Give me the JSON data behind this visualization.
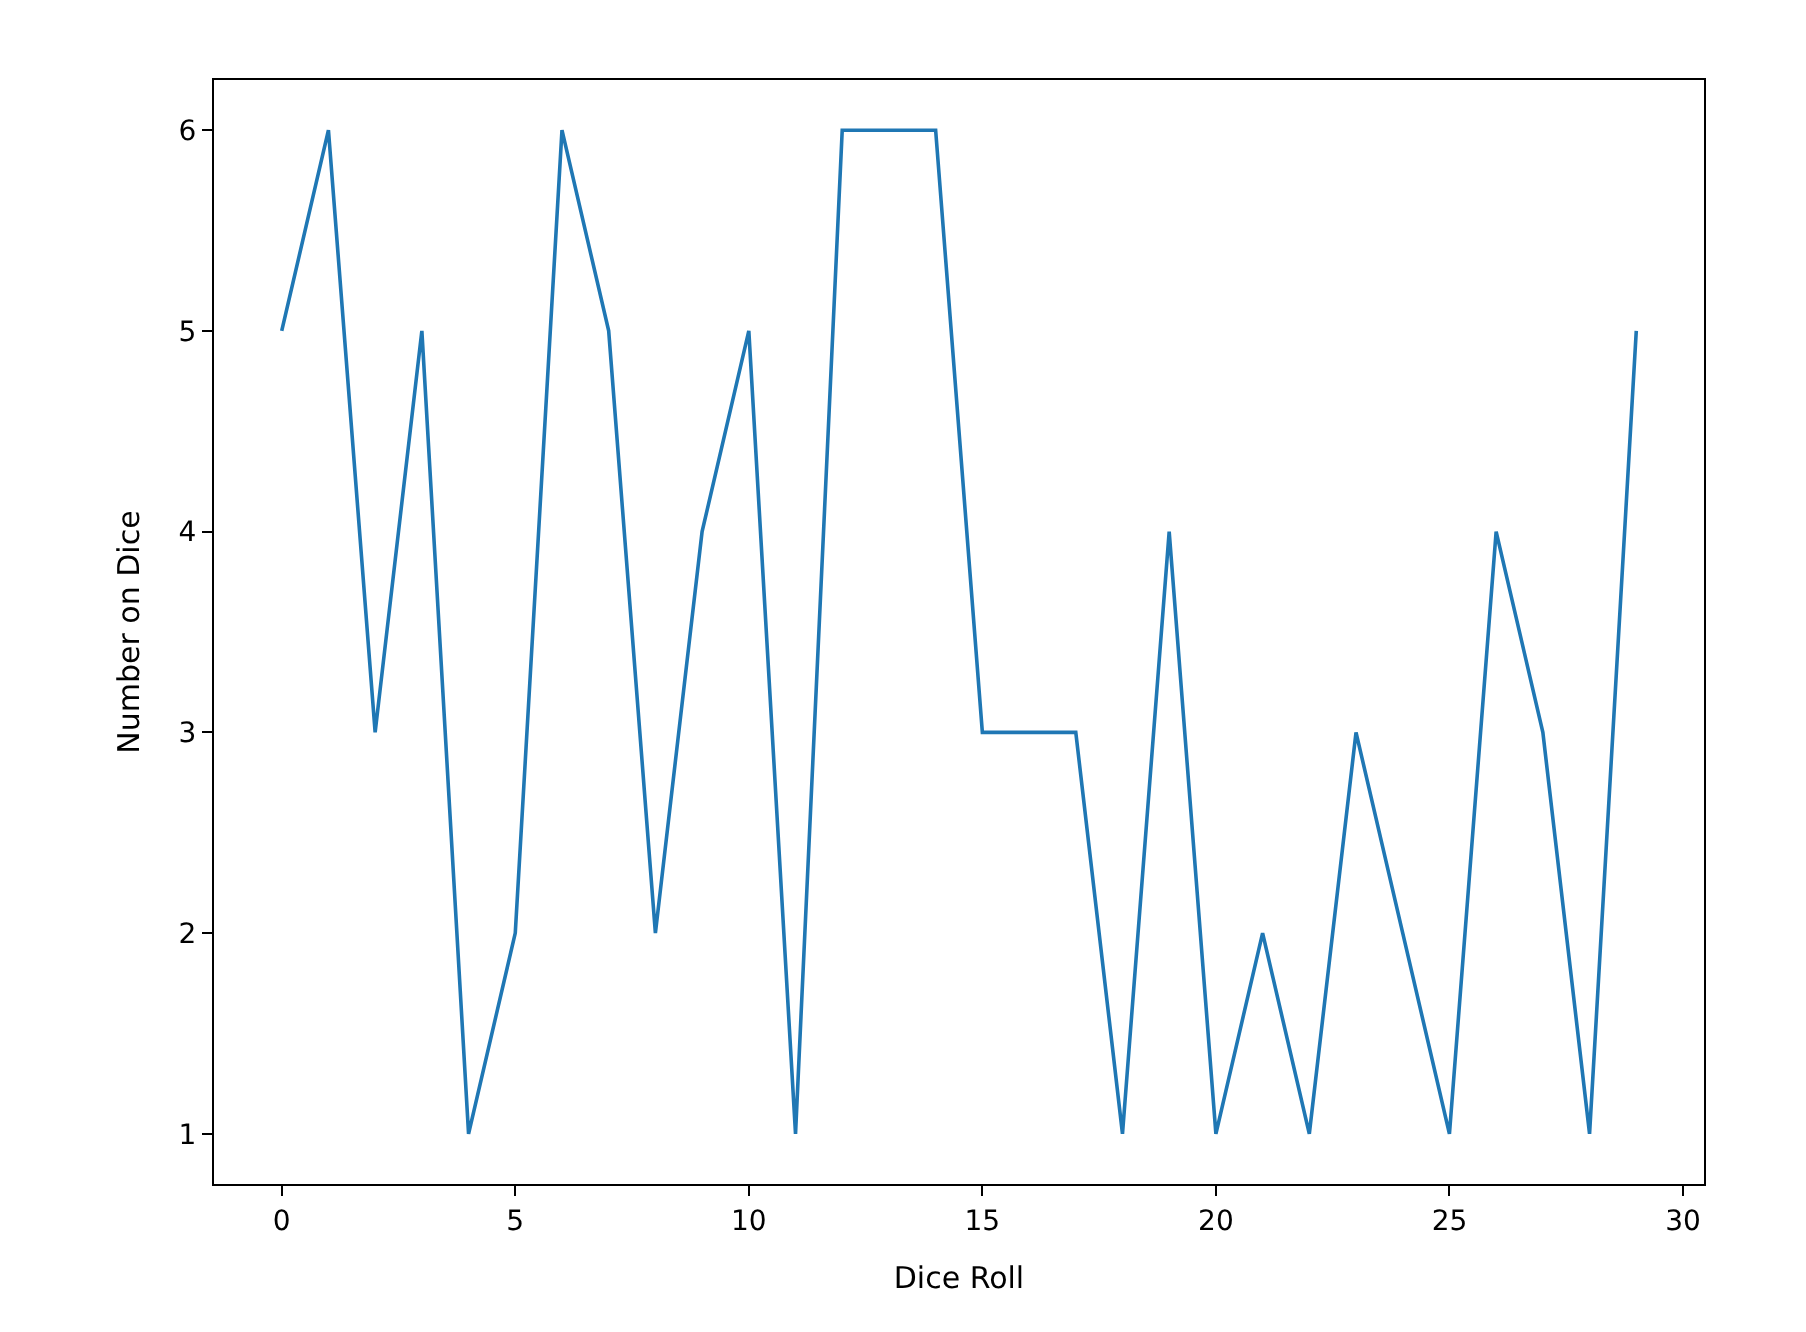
{
  "chart_data": {
    "type": "line",
    "xlabel": "Dice Roll",
    "ylabel": "Number on Dice",
    "x": [
      0,
      1,
      2,
      3,
      4,
      5,
      6,
      7,
      8,
      9,
      10,
      11,
      12,
      13,
      14,
      15,
      16,
      17,
      18,
      19,
      20,
      21,
      22,
      23,
      24,
      25,
      26,
      27,
      28,
      29
    ],
    "series": [
      {
        "color": "#1f77b4",
        "values": [
          5,
          6,
          3,
          5,
          1,
          2,
          6,
          5,
          2,
          4,
          5,
          1,
          6,
          6,
          6,
          3,
          3,
          3,
          1,
          4,
          1,
          2,
          1,
          3,
          2,
          1,
          4,
          3,
          1,
          5
        ]
      }
    ],
    "xlim": [
      -1.45,
      30.45
    ],
    "ylim": [
      0.75,
      6.25
    ],
    "xticks": [
      0,
      5,
      10,
      15,
      20,
      25,
      30
    ],
    "yticks": [
      1,
      2,
      3,
      4,
      5,
      6
    ],
    "grid": false,
    "marker": "none",
    "line_style": "solid"
  }
}
